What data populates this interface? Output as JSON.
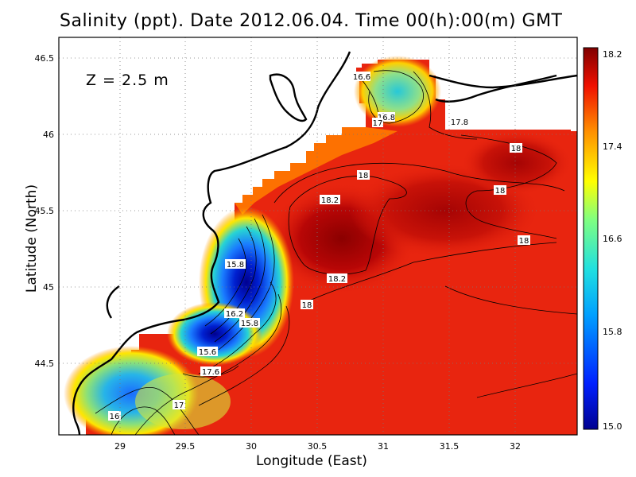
{
  "title": "Salinity (ppt). Date 2012.06.04. Time 00(h):00(m) GMT",
  "depth_label": "Z  =  2.5  m",
  "xlabel": "Longitude (East)",
  "ylabel": "Latitude (North)",
  "x_ticks": [
    "29",
    "29.5",
    "30",
    "30.5",
    "31",
    "31.5",
    "32"
  ],
  "y_ticks": [
    "46.5",
    "46",
    "45.5",
    "45",
    "44.5"
  ],
  "colorbar_ticks": [
    "18.2",
    "17.4",
    "16.6",
    "15.8",
    "15.0"
  ],
  "contour_labels": [
    "16.6",
    "16.8",
    "17",
    "17.8",
    "18",
    "18",
    "18",
    "18",
    "18.2",
    "15.8",
    "18.2",
    "18",
    "16.2",
    "15.8",
    "15.6",
    "17.6",
    "17",
    "16"
  ],
  "colors": {
    "deep_red": "#8b0000",
    "red": "#e8250f",
    "orange": "#ff8c00",
    "yellow": "#ffe600",
    "cyan": "#27d4d4",
    "blue": "#1540ff",
    "navy": "#000090"
  },
  "chart_data": {
    "type": "heatmap",
    "title": "Salinity (ppt). Date 2012.06.04. Time 00(h):00(m) GMT",
    "xlabel": "Longitude (East)",
    "ylabel": "Latitude (North)",
    "xlim": [
      28.55,
      32.45
    ],
    "ylim": [
      44.03,
      46.55
    ],
    "clim": [
      15.0,
      18.2
    ],
    "grid": true,
    "colorbar": "right"
  }
}
